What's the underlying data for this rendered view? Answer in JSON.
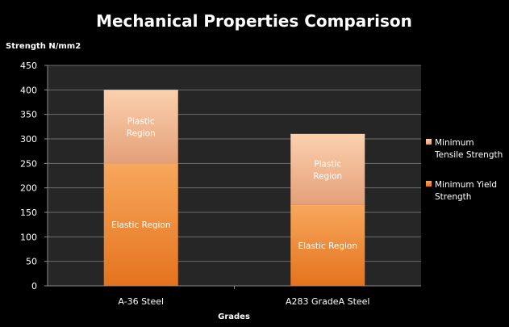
{
  "chart_data": {
    "type": "bar",
    "stacked": true,
    "title": "Mechanical Properties Comparison",
    "xlabel": "Grades",
    "ylabel": "Strength N/mm2",
    "ylim": [
      0,
      450
    ],
    "ytick_step": 50,
    "yticks": [
      "0",
      "50",
      "100",
      "150",
      "200",
      "250",
      "300",
      "350",
      "400",
      "450"
    ],
    "grid": true,
    "legend_position": "right",
    "categories": [
      "A-36 Steel",
      "A283 GradeA Steel"
    ],
    "series": [
      {
        "name": "Minimum Yield Strength",
        "legend_lines": [
          "Minimum Yield",
          "Strength"
        ],
        "values": [
          250,
          165
        ],
        "segment_label_lines": [
          "Elastic Region"
        ],
        "color_top": "#f7a75c",
        "color_bottom": "#e5731d"
      },
      {
        "name": "Minimum Tensile Strength",
        "legend_lines": [
          "Minimum",
          "Tensile Strength"
        ],
        "values": [
          150,
          145
        ],
        "segment_label_lines": [
          "Plastic",
          "Region"
        ],
        "color_top": "#fcd0ae",
        "color_bottom": "#e3a078"
      }
    ],
    "colors": {
      "background": "#000000",
      "plot_background": "#262626",
      "gridline": "#6e6e6e",
      "axis": "#8c8c8c",
      "text": "#ffffff"
    }
  }
}
